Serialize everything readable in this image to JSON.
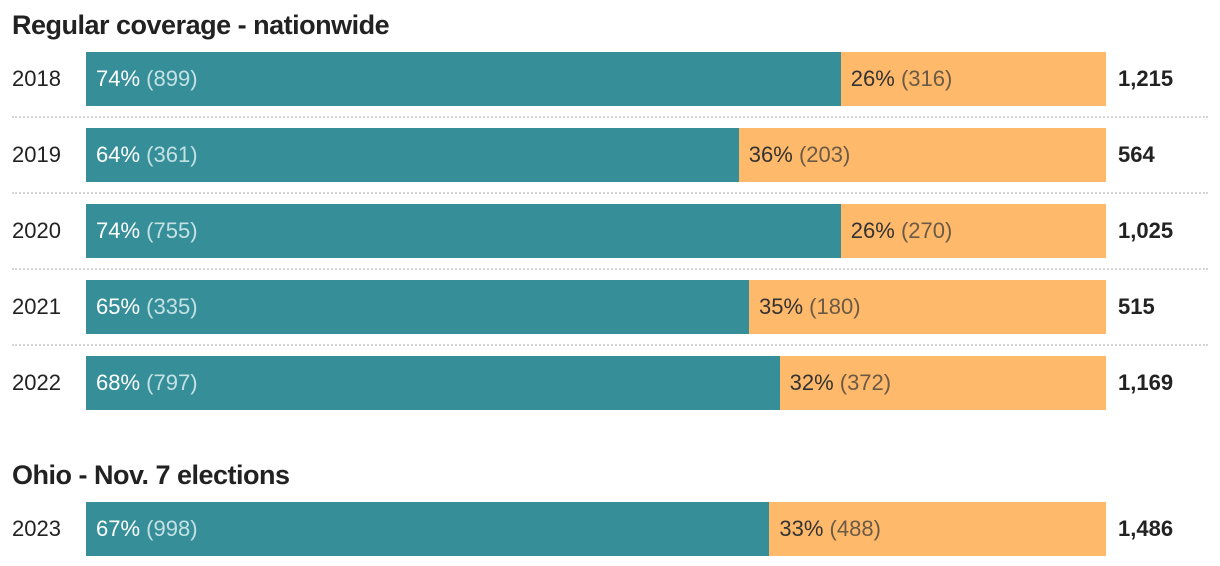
{
  "chart_data": [
    {
      "type": "bar",
      "orientation": "horizontal",
      "stacked": true,
      "normalized": true,
      "title": "Regular coverage - nationwide",
      "categories": [
        "2018",
        "2019",
        "2020",
        "2021",
        "2022"
      ],
      "series": [
        {
          "color": "#368f98",
          "percent": [
            74,
            64,
            74,
            65,
            68
          ],
          "values": [
            899,
            361,
            755,
            335,
            797
          ]
        },
        {
          "color": "#ffb96b",
          "percent": [
            26,
            36,
            26,
            35,
            32
          ],
          "values": [
            316,
            203,
            270,
            180,
            372
          ]
        }
      ],
      "totals": [
        "1,215",
        "564",
        "1,025",
        "515",
        "1,169"
      ]
    },
    {
      "type": "bar",
      "orientation": "horizontal",
      "stacked": true,
      "normalized": true,
      "title": "Ohio - Nov. 7 elections",
      "categories": [
        "2023"
      ],
      "series": [
        {
          "color": "#368f98",
          "percent": [
            67
          ],
          "values": [
            998
          ]
        },
        {
          "color": "#ffb96b",
          "percent": [
            33
          ],
          "values": [
            488
          ]
        }
      ],
      "totals": [
        "1,486"
      ]
    }
  ]
}
